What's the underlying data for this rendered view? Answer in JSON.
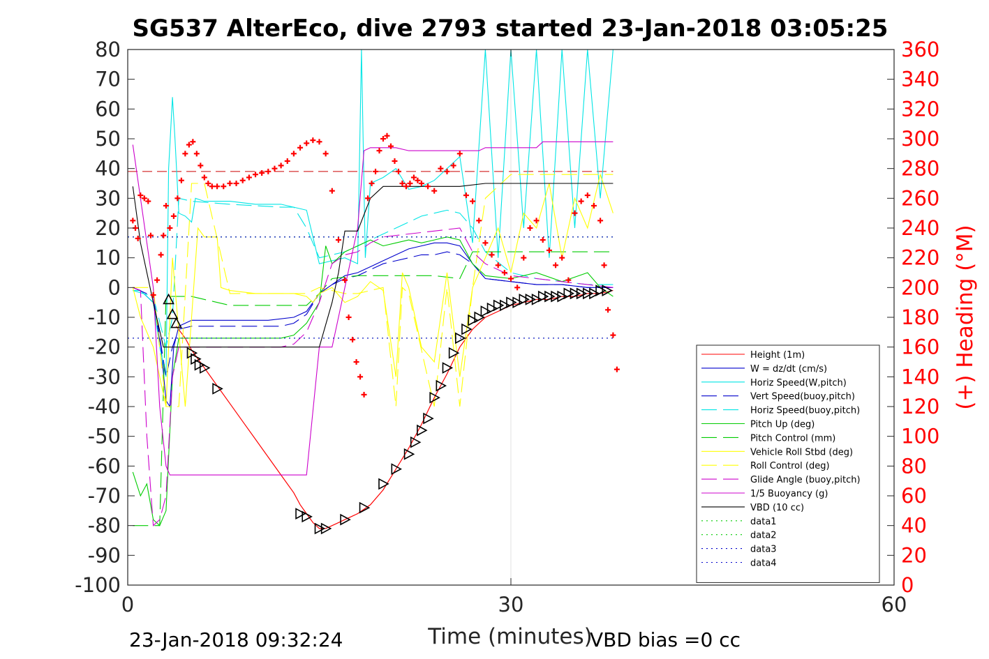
{
  "chart_data": {
    "type": "line",
    "title": "SG537 AlterEco, dive 2793 started 23-Jan-2018 03:05:25",
    "xlabel": "Time (minutes)",
    "ylabel_right": "(+) Heading (°M)",
    "xlim": [
      0,
      60
    ],
    "ylim": [
      -100,
      80
    ],
    "ylim_right": [
      0,
      360
    ],
    "x_ticks": [
      0,
      30,
      60
    ],
    "y_ticks": [
      -100,
      -90,
      -80,
      -70,
      -60,
      -50,
      -40,
      -30,
      -20,
      -10,
      0,
      10,
      20,
      30,
      40,
      50,
      60,
      70,
      80
    ],
    "y_ticks_right": [
      0,
      20,
      40,
      60,
      80,
      100,
      120,
      140,
      160,
      180,
      200,
      220,
      240,
      260,
      280,
      300,
      320,
      340,
      360
    ],
    "grid": "x-only",
    "legend_position": "bottom-right",
    "footer_left": "23-Jan-2018 09:32:24",
    "footer_right": "VBD bias =0 cc",
    "colors": {
      "height": "#ff0000",
      "w": "#0000cc",
      "horiz_w": "#00e5e5",
      "vert_buoy": "#0000cc",
      "horiz_buoy": "#00e5e5",
      "pitch_up": "#00cc00",
      "pitch_ctrl": "#00cc00",
      "roll": "#ffff00",
      "roll_ctrl": "#ffff00",
      "glide": "#cc00cc",
      "buoy": "#cc00cc",
      "vbd": "#000000",
      "heading": "#ff0000"
    },
    "series": [
      {
        "name": "Height (1m)",
        "key": "height",
        "style": "solid",
        "x": [
          3.8,
          4.5,
          5.0,
          5.5,
          6.0,
          7.0,
          8.0,
          9.0,
          10.0,
          11.0,
          12.0,
          13.0,
          13.5,
          14.0,
          14.5,
          15.0,
          15.5,
          16.0,
          16.5,
          17.0,
          18.0,
          19.0,
          20.0,
          21.0,
          22.0,
          23.0,
          24.0,
          25.0,
          26.0,
          27.0,
          28.0,
          29.0,
          30.0,
          31.0,
          32.0,
          33.0,
          34.0,
          35.0,
          36.0,
          37.0,
          38.0
        ],
        "y": [
          -13,
          -17,
          -21,
          -24,
          -27,
          -33,
          -39,
          -45,
          -51,
          -57,
          -63,
          -69,
          -73,
          -76,
          -79,
          -81,
          -81,
          -80,
          -79,
          -78,
          -76,
          -73,
          -68,
          -61,
          -54,
          -46,
          -37,
          -29,
          -20,
          -14,
          -10,
          -8,
          -6,
          -5,
          -4,
          -4,
          -3,
          -3,
          -2,
          -2,
          -1
        ]
      },
      {
        "name": "W = dz/dt (cm/s)",
        "key": "w",
        "style": "solid",
        "x": [
          0.4,
          1.0,
          2.0,
          2.6,
          3.0,
          3.3,
          3.6,
          4.0,
          4.5,
          5.0,
          8.0,
          11.0,
          13.0,
          14.0,
          15.0,
          16.0,
          17.0,
          18.0,
          19.0,
          20.0,
          21.0,
          22.0,
          23.0,
          24.0,
          25.0,
          26.0,
          27.0,
          28.0,
          30.0,
          32.0,
          34.0,
          36.0,
          37.0,
          38.0
        ],
        "y": [
          0,
          -1,
          -5,
          -20,
          -38,
          -40,
          -20,
          -13,
          -12,
          -11,
          -11,
          -11,
          -10,
          -8,
          -2,
          1,
          4,
          5,
          7,
          9,
          11,
          13,
          14,
          15,
          15,
          14,
          8,
          3,
          2,
          1,
          1,
          0,
          0,
          0
        ]
      },
      {
        "name": "Horiz Speed(W,pitch)",
        "key": "horiz_w",
        "style": "solid",
        "x": [
          0.4,
          1.0,
          2.0,
          2.5,
          3.0,
          3.2,
          3.5,
          3.7,
          4.0,
          4.5,
          5.0,
          5.3,
          6.0,
          8.0,
          10.0,
          12.0,
          13.0,
          14.0,
          15.0,
          16.0,
          17.0,
          18.0,
          18.3,
          18.6,
          19.0,
          20.0,
          21.0,
          22.0,
          23.0,
          24.0,
          25.0,
          26.0,
          27.0,
          28.0,
          29.0,
          30.0,
          31.0,
          32.0,
          33.0,
          34.0,
          35.0,
          36.0,
          37.0,
          38.0
        ],
        "y": [
          -1,
          -1,
          -5,
          -20,
          -30,
          40,
          64,
          50,
          25,
          24,
          22,
          30,
          29,
          29,
          28,
          28,
          27,
          26,
          8,
          9,
          10,
          8,
          80,
          10,
          35,
          37,
          40,
          33,
          34,
          36,
          40,
          44,
          15,
          80,
          10,
          80,
          20,
          80,
          10,
          80,
          20,
          80,
          30,
          80
        ]
      },
      {
        "name": "Vert Speed(buoy,pitch)",
        "key": "vert_buoy",
        "style": "dashed",
        "x": [
          0.4,
          2.0,
          3.0,
          3.5,
          4.0,
          5.0,
          8.0,
          12.0,
          13.0,
          14.0,
          15.0,
          16.0,
          17.0,
          18.0,
          19.0,
          20.0,
          21.0,
          22.0,
          23.0,
          24.0,
          25.0,
          26.0,
          27.0,
          28.0,
          30.0,
          32.0,
          34.0,
          36.0,
          38.0
        ],
        "y": [
          0,
          -3,
          -30,
          -20,
          -14,
          -13,
          -13,
          -13,
          -12,
          -9,
          -2,
          1,
          3,
          4,
          6,
          8,
          9,
          10,
          11,
          11,
          12,
          11,
          8,
          3,
          2,
          1,
          1,
          0,
          0
        ]
      },
      {
        "name": "Horiz Speed(buoy,pitch)",
        "key": "horiz_buoy",
        "style": "dashed",
        "x": [
          0.4,
          2.0,
          3.0,
          3.5,
          4.0,
          5.0,
          8.0,
          12.0,
          13.0,
          14.0,
          15.0,
          16.0,
          17.0,
          18.0,
          19.0,
          20.0,
          21.0,
          22.0,
          23.0,
          24.0,
          25.0,
          26.0,
          27.0,
          28.0,
          30.0,
          32.0,
          34.0,
          36.0,
          38.0
        ],
        "y": [
          -1,
          -3,
          -20,
          -10,
          30,
          29,
          28,
          27,
          27,
          20,
          10,
          11,
          12,
          14,
          16,
          18,
          20,
          22,
          24,
          25,
          26,
          25,
          20,
          12,
          5,
          3,
          2,
          1,
          1
        ]
      },
      {
        "name": "Pitch Up (deg)",
        "key": "pitch_up",
        "style": "solid",
        "x": [
          0.4,
          1.0,
          1.5,
          2.0,
          2.5,
          3.0,
          3.5,
          4.0,
          5.0,
          8.0,
          12.0,
          13.0,
          14.0,
          15.0,
          15.5,
          16.0,
          17.0,
          18.0,
          19.0,
          20.0,
          21.0,
          22.0,
          23.0,
          24.0,
          25.0,
          26.0,
          27.0,
          28.0,
          30.0,
          32.0,
          34.0,
          36.0,
          37.0,
          38.0
        ],
        "y": [
          -62,
          -70,
          -66,
          -78,
          -80,
          -75,
          -30,
          -17,
          -17,
          -17,
          -17,
          -16,
          -12,
          -5,
          14,
          8,
          12,
          14,
          16,
          14,
          15,
          16,
          15,
          16,
          17,
          16,
          8,
          4,
          3,
          5,
          2,
          5,
          0,
          -3
        ]
      },
      {
        "name": "Pitch Control (mm)",
        "key": "pitch_ctrl",
        "style": "dashed",
        "x": [
          0.4,
          2.0,
          2.5,
          3.0,
          3.5,
          5.0,
          8.0,
          12.0,
          14.0,
          15.0,
          16.0,
          18.0,
          20.0,
          22.0,
          24.0,
          26.0,
          27.0,
          28.0,
          30.0,
          32.0,
          34.0,
          36.0,
          38.0
        ],
        "y": [
          -80,
          -80,
          -80,
          -3,
          -3,
          -3,
          -6,
          -6,
          -6,
          -2,
          3,
          4,
          4,
          4,
          4,
          3,
          12,
          12,
          12,
          12,
          12,
          12,
          12
        ]
      },
      {
        "name": "Vehicle Roll Stbd (deg)",
        "key": "roll",
        "style": "solid",
        "x": [
          0.4,
          1.0,
          2.0,
          2.5,
          3.0,
          3.5,
          4.0,
          4.5,
          5.0,
          5.5,
          6.0,
          7.0,
          7.3,
          8.0,
          10.0,
          12.0,
          13.0,
          14.0,
          14.5,
          15.0,
          16.0,
          17.0,
          18.0,
          19.0,
          20.0,
          21.0,
          21.5,
          22.0,
          23.0,
          24.0,
          25.0,
          26.0,
          27.0,
          28.0,
          29.0,
          30.0,
          31.0,
          32.0,
          33.0,
          34.0,
          35.0,
          36.0,
          37.0,
          38.0
        ],
        "y": [
          0,
          -10,
          -20,
          -30,
          -40,
          10,
          -15,
          -40,
          -10,
          20,
          17,
          17,
          0,
          -1,
          -2,
          -2,
          -2,
          -3,
          -5,
          -2,
          0,
          -5,
          -3,
          2,
          -1,
          -30,
          5,
          0,
          -20,
          -25,
          5,
          -30,
          0,
          10,
          20,
          5,
          25,
          20,
          35,
          10,
          30,
          20,
          38,
          25
        ]
      },
      {
        "name": "Roll Control (deg)",
        "key": "roll_ctrl",
        "style": "dashed",
        "x": [
          0.4,
          2.0,
          3.0,
          4.0,
          5.0,
          6.0,
          8.0,
          12.0,
          14.0,
          15.0,
          17.0,
          18.0,
          20.0,
          21.0,
          21.5,
          22.0,
          24.0,
          25.0,
          26.0,
          27.0,
          28.0,
          30.0,
          32.0,
          34.0,
          36.0,
          38.0
        ],
        "y": [
          0,
          0,
          -40,
          -40,
          35,
          35,
          -2,
          -2,
          -2,
          0,
          -2,
          -2,
          0,
          -40,
          0,
          -2,
          -40,
          0,
          -40,
          0,
          30,
          38,
          38,
          38,
          38,
          38
        ]
      },
      {
        "name": "Glide Angle (buoy,pitch)",
        "key": "glide",
        "style": "dashed",
        "x": [
          0.4,
          1.0,
          1.5,
          2.0,
          2.5,
          3.0,
          3.5,
          4.0,
          5.0,
          8.0,
          12.0,
          13.0,
          14.0,
          15.0,
          16.0,
          17.0,
          18.0,
          19.0,
          20.0,
          22.0,
          24.0,
          26.0,
          27.0,
          28.0,
          30.0,
          32.0,
          34.0,
          36.0,
          38.0
        ],
        "y": [
          0,
          -1,
          -50,
          -80,
          -78,
          -70,
          -30,
          -20,
          -20,
          -20,
          -20,
          -19,
          -15,
          -5,
          8,
          11,
          12,
          15,
          17,
          18,
          19,
          20,
          12,
          8,
          4,
          3,
          2,
          1,
          0
        ]
      },
      {
        "name": "1/5 Buoyancy (g)",
        "key": "buoy",
        "style": "solid",
        "x": [
          0.4,
          1.0,
          2.0,
          2.5,
          3.0,
          3.3,
          5.0,
          10.0,
          13.0,
          14.0,
          15.0,
          16.0,
          17.0,
          18.0,
          18.5,
          19.0,
          20.0,
          21.0,
          22.0,
          24.0,
          26.0,
          27.5,
          28.0,
          30.0,
          32.0,
          32.5,
          34.0,
          36.0,
          38.0
        ],
        "y": [
          48,
          30,
          0,
          -40,
          -60,
          -63,
          -63,
          -63,
          -63,
          -63,
          -20,
          -20,
          0,
          20,
          46,
          47,
          47,
          47,
          46,
          46,
          46,
          46,
          47,
          47,
          47,
          49,
          49,
          49,
          49
        ]
      },
      {
        "name": "VBD (10 cc)",
        "key": "vbd",
        "style": "solid",
        "x": [
          0.4,
          1.0,
          2.0,
          2.8,
          3.0,
          3.5,
          10.0,
          13.0,
          14.0,
          15.0,
          16.0,
          16.5,
          17.0,
          17.5,
          18.0,
          19.0,
          20.0,
          21.0,
          22.0,
          23.0,
          24.0,
          26.0,
          28.0,
          30.0,
          32.0,
          34.0,
          36.0,
          38.0
        ],
        "y": [
          34,
          15,
          -5,
          -20,
          -20,
          -20,
          -20,
          -20,
          -20,
          -20,
          -5,
          5,
          19,
          19,
          19,
          30,
          34,
          34,
          34,
          34,
          34,
          34,
          35,
          35,
          35,
          35,
          35,
          35
        ]
      },
      {
        "name": "data1",
        "key": "data1",
        "style": "dotted",
        "x": [
          0,
          38
        ],
        "y": [
          17,
          17
        ]
      },
      {
        "name": "data2",
        "key": "data2",
        "style": "dotted",
        "x": [
          0,
          38
        ],
        "y": [
          -17,
          -17
        ]
      },
      {
        "name": "data3",
        "key": "data3",
        "style": "dotted",
        "x": [
          0,
          38
        ],
        "y": [
          17,
          17
        ]
      },
      {
        "name": "data4",
        "key": "data4",
        "style": "dotted",
        "x": [
          0,
          38
        ],
        "y": [
          -17,
          -17
        ]
      }
    ],
    "reference_heading": 278,
    "heading": {
      "axis": "right",
      "x": [
        0.4,
        0.6,
        0.8,
        1.0,
        1.3,
        1.6,
        1.8,
        2.0,
        2.3,
        2.6,
        2.8,
        3.0,
        3.3,
        3.6,
        3.9,
        4.2,
        4.5,
        4.8,
        5.1,
        5.4,
        5.7,
        6.0,
        6.3,
        6.6,
        7.0,
        7.5,
        8.0,
        8.5,
        9.0,
        9.5,
        10.0,
        10.5,
        11.0,
        11.5,
        12.0,
        12.5,
        13.0,
        13.5,
        14.0,
        14.5,
        15.0,
        15.5,
        16.0,
        16.5,
        17.0,
        17.3,
        17.6,
        17.9,
        18.2,
        18.5,
        18.8,
        19.1,
        19.4,
        19.7,
        20.0,
        20.3,
        20.6,
        20.9,
        21.2,
        21.5,
        21.8,
        22.1,
        22.4,
        22.7,
        23.0,
        23.5,
        24.0,
        24.5,
        25.0,
        25.5,
        26.0,
        26.5,
        27.0,
        27.5,
        28.0,
        28.5,
        29.0,
        29.5,
        30.0,
        30.5,
        31.0,
        31.5,
        32.0,
        32.5,
        33.0,
        33.5,
        34.0,
        34.5,
        35.0,
        35.5,
        36.0,
        36.5,
        37.0,
        37.3,
        37.6,
        38.0,
        38.3
      ],
      "y": [
        245,
        240,
        233,
        262,
        260,
        258,
        235,
        195,
        205,
        222,
        235,
        255,
        240,
        248,
        260,
        272,
        290,
        296,
        298,
        290,
        282,
        274,
        270,
        268,
        268,
        268,
        270,
        270,
        272,
        274,
        276,
        277,
        278,
        280,
        282,
        285,
        290,
        294,
        297,
        299,
        298,
        290,
        265,
        232,
        205,
        180,
        165,
        150,
        140,
        128,
        260,
        270,
        278,
        292,
        300,
        302,
        295,
        285,
        278,
        270,
        268,
        270,
        274,
        272,
        270,
        268,
        265,
        280,
        278,
        282,
        290,
        262,
        258,
        245,
        230,
        222,
        215,
        210,
        206,
        200,
        220,
        240,
        245,
        232,
        225,
        215,
        220,
        205,
        250,
        258,
        262,
        255,
        245,
        215,
        185,
        168,
        145
      ]
    },
    "markers": {
      "x": [
        3.2,
        3.5,
        3.8,
        5.0,
        5.3,
        5.6,
        6.0,
        7.0,
        13.5,
        14.0,
        15.0,
        15.5,
        17.0,
        18.5,
        20.0,
        21.0,
        22.0,
        22.5,
        23.0,
        23.5,
        24.0,
        24.5,
        25.0,
        25.5,
        26.0,
        26.5,
        27.0,
        27.5,
        28.0,
        28.5,
        29.0,
        29.5,
        30.0,
        30.5,
        31.0,
        31.5,
        32.0,
        32.5,
        33.0,
        33.5,
        34.0,
        34.5,
        35.0,
        35.5,
        36.0,
        36.5,
        37.0,
        37.5
      ],
      "y": [
        -4,
        -9,
        -12,
        -22,
        -24,
        -26,
        -27,
        -34,
        -76,
        -77,
        -81,
        -81,
        -78,
        -74,
        -66,
        -61,
        -56,
        -52,
        -48,
        -44,
        -37,
        -33,
        -27,
        -22,
        -17,
        -14,
        -11,
        -10,
        -8,
        -7,
        -6,
        -6,
        -5,
        -5,
        -4,
        -4,
        -4,
        -3,
        -3,
        -3,
        -3,
        -2,
        -2,
        -2,
        -2,
        -2,
        -1,
        -1
      ]
    }
  }
}
